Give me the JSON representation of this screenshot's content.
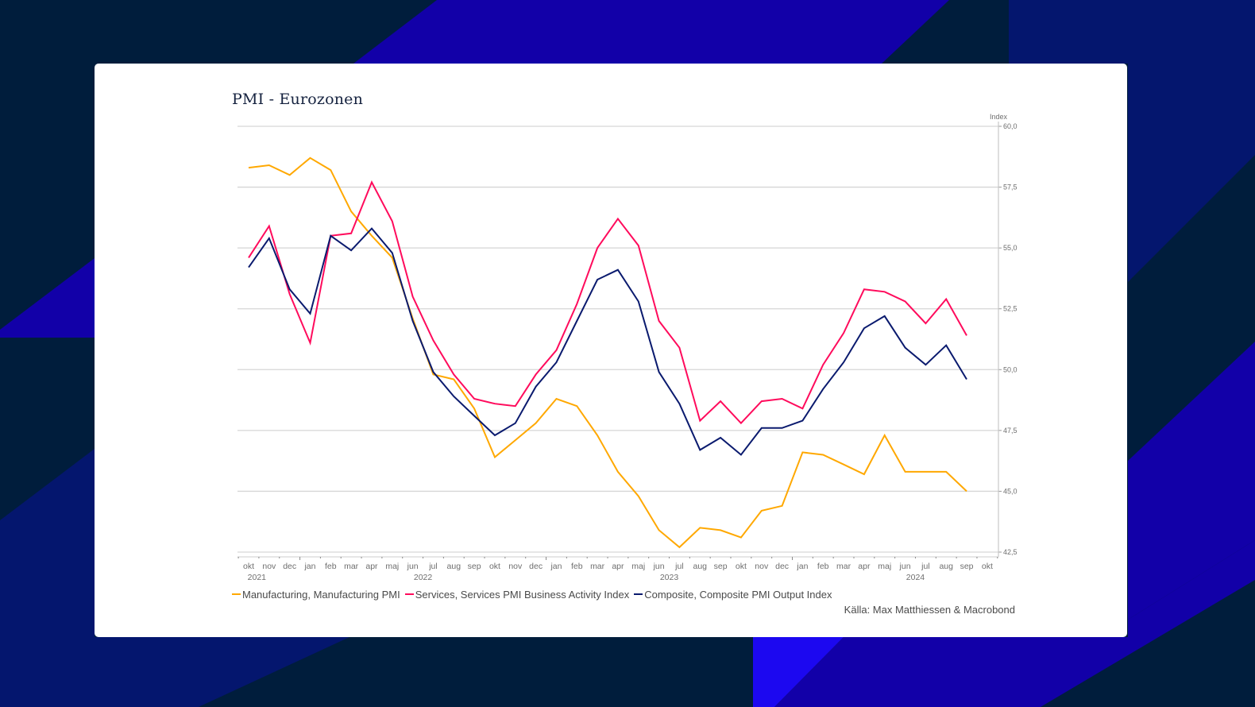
{
  "colors": {
    "background": "#001d3c",
    "bg_blue": "#1200a8",
    "bg_navy": "#04166e",
    "bg_bright": "#1c08f0",
    "card": "#ffffff"
  },
  "chart_data": {
    "type": "line",
    "title": "PMI - Eurozonen",
    "xlabel": "",
    "ylabel": "Index",
    "ylim": [
      42.5,
      60.0
    ],
    "y_ticks": [
      "60,0",
      "57,5",
      "55,0",
      "52,5",
      "50,0",
      "47,5",
      "45,0",
      "42,5"
    ],
    "y_tick_values": [
      60.0,
      57.5,
      55.0,
      52.5,
      50.0,
      47.5,
      45.0,
      42.5
    ],
    "y_axis_side": "right",
    "grid": true,
    "x_tick_labels": [
      "okt",
      "nov",
      "dec",
      "jan",
      "feb",
      "mar",
      "apr",
      "maj",
      "jun",
      "jul",
      "aug",
      "sep",
      "okt",
      "nov",
      "dec",
      "jan",
      "feb",
      "mar",
      "apr",
      "maj",
      "jun",
      "jul",
      "aug",
      "sep",
      "okt",
      "nov",
      "dec",
      "jan",
      "feb",
      "mar",
      "apr",
      "maj",
      "jun",
      "jul",
      "aug",
      "sep",
      "okt"
    ],
    "x_year_labels": [
      {
        "label": "2021",
        "index": 0
      },
      {
        "label": "2022",
        "index": 8.5
      },
      {
        "label": "2023",
        "index": 20.5
      },
      {
        "label": "2024",
        "index": 32.5
      }
    ],
    "categories": [
      "okt 2021",
      "nov 2021",
      "dec 2021",
      "jan 2022",
      "feb 2022",
      "mar 2022",
      "apr 2022",
      "maj 2022",
      "jun 2022",
      "jul 2022",
      "aug 2022",
      "sep 2022",
      "okt 2022",
      "nov 2022",
      "dec 2022",
      "jan 2023",
      "feb 2023",
      "mar 2023",
      "apr 2023",
      "maj 2023",
      "jun 2023",
      "jul 2023",
      "aug 2023",
      "sep 2023",
      "okt 2023",
      "nov 2023",
      "dec 2023",
      "jan 2024",
      "feb 2024",
      "mar 2024",
      "apr 2024",
      "maj 2024",
      "jun 2024",
      "jul 2024",
      "aug 2024",
      "sep 2024"
    ],
    "series": [
      {
        "name": "Manufacturing, Manufacturing PMI",
        "color": "#ffa800",
        "values": [
          58.3,
          58.4,
          58.0,
          58.7,
          58.2,
          56.5,
          55.5,
          54.6,
          52.1,
          49.8,
          49.6,
          48.4,
          46.4,
          47.1,
          47.8,
          48.8,
          48.5,
          47.3,
          45.8,
          44.8,
          43.4,
          42.7,
          43.5,
          43.4,
          43.1,
          44.2,
          44.4,
          46.6,
          46.5,
          46.1,
          45.7,
          47.3,
          45.8,
          45.8,
          45.8,
          45.0
        ]
      },
      {
        "name": "Services, Services PMI Business Activity Index",
        "color": "#ff0b5c",
        "values": [
          54.6,
          55.9,
          53.1,
          51.1,
          55.5,
          55.6,
          57.7,
          56.1,
          53.0,
          51.2,
          49.8,
          48.8,
          48.6,
          48.5,
          49.8,
          50.8,
          52.7,
          55.0,
          56.2,
          55.1,
          52.0,
          50.9,
          47.9,
          48.7,
          47.8,
          48.7,
          48.8,
          48.4,
          50.2,
          51.5,
          53.3,
          53.2,
          52.8,
          51.9,
          52.9,
          51.4
        ]
      },
      {
        "name": "Composite, Composite PMI Output Index",
        "color": "#0a1a6e",
        "values": [
          54.2,
          55.4,
          53.3,
          52.3,
          55.5,
          54.9,
          55.8,
          54.8,
          52.0,
          49.9,
          48.9,
          48.1,
          47.3,
          47.8,
          49.3,
          50.3,
          52.0,
          53.7,
          54.1,
          52.8,
          49.9,
          48.6,
          46.7,
          47.2,
          46.5,
          47.6,
          47.6,
          47.9,
          49.2,
          50.3,
          51.7,
          52.2,
          50.9,
          50.2,
          51.0,
          49.6
        ]
      }
    ],
    "legend_position": "bottom-left",
    "source": "Källa: Max Matthiessen & Macrobond"
  }
}
